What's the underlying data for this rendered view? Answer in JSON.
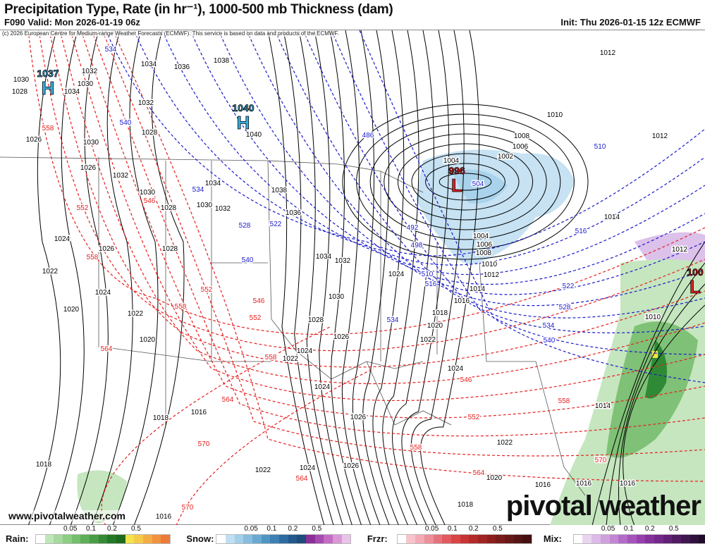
{
  "header": {
    "title": "Precipitation Type, Rate (in hr⁻¹), 1000-500 mb Thickness (dam)",
    "valid": "F090 Valid: Mon 2026-01-19 06z",
    "init": "Init: Thu 2026-01-15 12z ECMWF"
  },
  "map": {
    "copyright": "(c) 2026 European Centre for Medium-range Weather Forecasts (ECMWF). This service is based on data and products of the ECMWF.",
    "url": "www.pivotalweather.com",
    "logo": "pivotal weather",
    "colors": {
      "isobar": "#000000",
      "thickness_cold": "#1a1acc",
      "thickness_warm": "#e62020",
      "high": "#3ab0e0",
      "low": "#e02020"
    },
    "pressure_centers": [
      {
        "type": "H",
        "value": "1037"
      },
      {
        "type": "H",
        "value": "1040"
      },
      {
        "type": "L",
        "value": "996"
      },
      {
        "type": "L",
        "value": "100"
      }
    ],
    "thickness_cold_labels": [
      "534",
      "540",
      "534",
      "528",
      "522",
      "540",
      "486",
      "504",
      "492",
      "498",
      "510",
      "516",
      "534",
      "510",
      "516",
      "522",
      "528",
      "534",
      "540"
    ],
    "thickness_warm_labels": [
      "558",
      "552",
      "546",
      "558",
      "552",
      "558",
      "546",
      "552",
      "564",
      "558",
      "564",
      "546",
      "552",
      "558",
      "558",
      "564",
      "570",
      "570",
      "570",
      "564"
    ],
    "isobar_labels": [
      "1038",
      "1034",
      "1036",
      "1032",
      "1040",
      "1028",
      "1030",
      "1032",
      "1034",
      "1030",
      "1028",
      "1030",
      "1032",
      "1038",
      "1036",
      "1034",
      "1032",
      "1024",
      "1026",
      "1028",
      "1022",
      "1024",
      "1020",
      "1022",
      "1020",
      "1030",
      "1028",
      "1026",
      "1024",
      "1022",
      "1024",
      "1024",
      "1018",
      "1020",
      "1022",
      "1024",
      "1026",
      "1026",
      "1022",
      "1024",
      "1018",
      "1016",
      "1018",
      "1016",
      "1022",
      "1020",
      "1018",
      "1016",
      "1016",
      "1016",
      "1014",
      "1010",
      "1012",
      "1014",
      "1012",
      "1010",
      "1008",
      "1006",
      "1002",
      "1004",
      "1004",
      "1006",
      "1008",
      "1010",
      "1012",
      "1014",
      "1016",
      "1012",
      "1026",
      "1026",
      "1028",
      "1030",
      "1032",
      "1034",
      "1030"
    ]
  },
  "legend": [
    {
      "label": "Rain:",
      "ticks": [
        "0.05",
        "0.1",
        "0.2",
        "0.5"
      ],
      "colors": [
        "#ffffff",
        "#bfe6b8",
        "#a6d99d",
        "#8ccc83",
        "#73bf6b",
        "#5fae58",
        "#4b9c46",
        "#378a35",
        "#237826",
        "#1d6b1d",
        "#f2e34a",
        "#f5c94a",
        "#f3ad45",
        "#f09240",
        "#ec7a38"
      ]
    },
    {
      "label": "Snow:",
      "ticks": [
        "0.05",
        "0.1",
        "0.2",
        "0.5"
      ],
      "colors": [
        "#ffffff",
        "#bfe0f2",
        "#a3cfe8",
        "#86bcdd",
        "#6aa9d2",
        "#4f95c4",
        "#3d80b3",
        "#2e6ba0",
        "#23588c",
        "#1f4b78",
        "#8c2e9a",
        "#a64bb0",
        "#c46cc4",
        "#d898d6",
        "#eac4e8"
      ]
    },
    {
      "label": "Frzr:",
      "ticks": [
        "0.05",
        "0.1",
        "0.2",
        "0.5"
      ],
      "colors": [
        "#ffffff",
        "#f7c4cc",
        "#f2aab4",
        "#ec8f99",
        "#e6737c",
        "#e05a5e",
        "#d94444",
        "#c83434",
        "#b52a2a",
        "#a02424",
        "#8c1e1e",
        "#7a1a1a",
        "#661818",
        "#541414",
        "#441010"
      ]
    },
    {
      "label": "Mix:",
      "ticks": [
        "0.05",
        "0.1",
        "0.2",
        "0.5"
      ],
      "colors": [
        "#ffffff",
        "#ead5f0",
        "#dcbbe8",
        "#cfa0de",
        "#c286d4",
        "#b46cc9",
        "#a554bc",
        "#963fae",
        "#86309c",
        "#742889",
        "#622176",
        "#501b62",
        "#3f164f",
        "#2f113c",
        "#200c2a"
      ]
    }
  ]
}
